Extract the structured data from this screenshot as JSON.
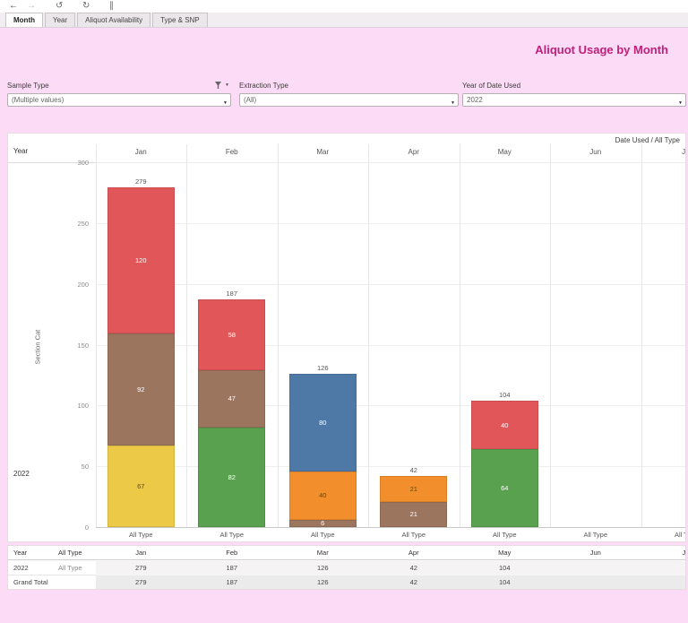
{
  "toolbar": {
    "icons": [
      {
        "name": "back-arrow-icon",
        "glyph": "←"
      },
      {
        "name": "forward-arrow-icon",
        "glyph": "→"
      },
      {
        "name": "revert-icon",
        "glyph": "↺"
      },
      {
        "name": "refresh-icon",
        "glyph": "↻"
      },
      {
        "name": "pause-icon",
        "glyph": "∥"
      }
    ]
  },
  "tabs": {
    "items": [
      {
        "label": "Month",
        "active": true
      },
      {
        "label": "Year",
        "active": false
      },
      {
        "label": "Aliquot Availability",
        "active": false
      },
      {
        "label": "Type & SNP",
        "active": false
      }
    ]
  },
  "header": {
    "title": "Aliquot Usage by Month",
    "title_color": "#c02079"
  },
  "filters": [
    {
      "label": "Sample Type",
      "value": "(Multiple values)",
      "has_menu_icons": true
    },
    {
      "label": "Extraction Type",
      "value": "(All)",
      "has_menu_icons": false
    },
    {
      "label": "Year of Date Used",
      "value": "2022",
      "has_menu_icons": false
    }
  ],
  "chart_data": {
    "type": "bar",
    "stacked": true,
    "title": "Aliquot Usage by Month",
    "corner_label": "Date Used / All Type",
    "row_axis_header": "Year",
    "row_label": "2022",
    "ylabel": "Section Cat",
    "column_footer_label": "All Type",
    "categories": [
      "Jan",
      "Feb",
      "Mar",
      "Apr",
      "May",
      "Jun",
      "Jul"
    ],
    "ylim": [
      0,
      300
    ],
    "yticks": [
      0,
      50,
      100,
      150,
      200,
      250,
      300
    ],
    "grid": true,
    "totals": [
      279,
      187,
      126,
      42,
      104,
      null,
      null
    ],
    "segments_order": "bottom-to-top",
    "stacks": [
      {
        "month": "Jan",
        "segments": [
          {
            "value": 67,
            "color": "#edc948",
            "label_dark": true
          },
          {
            "value": 92,
            "color": "#9c755f",
            "label_dark": false
          },
          {
            "value": 120,
            "color": "#e15759",
            "label_dark": false
          }
        ]
      },
      {
        "month": "Feb",
        "segments": [
          {
            "value": 82,
            "color": "#59a14f",
            "label_dark": false
          },
          {
            "value": 47,
            "color": "#9c755f",
            "label_dark": false
          },
          {
            "value": 58,
            "color": "#e15759",
            "label_dark": false
          }
        ]
      },
      {
        "month": "Mar",
        "segments": [
          {
            "value": 6,
            "color": "#9c755f",
            "label_dark": false
          },
          {
            "value": 40,
            "color": "#f28e2b",
            "label_dark": true
          },
          {
            "value": 80,
            "color": "#4e79a7",
            "label_dark": false
          }
        ]
      },
      {
        "month": "Apr",
        "segments": [
          {
            "value": 21,
            "color": "#9c755f",
            "label_dark": false
          },
          {
            "value": 21,
            "color": "#f28e2b",
            "label_dark": true
          }
        ]
      },
      {
        "month": "May",
        "segments": [
          {
            "value": 64,
            "color": "#59a14f",
            "label_dark": false
          },
          {
            "value": 40,
            "color": "#e15759",
            "label_dark": false
          }
        ]
      },
      {
        "month": "Jun",
        "segments": []
      },
      {
        "month": "Jul",
        "segments": []
      }
    ]
  },
  "summary_table": {
    "columns": [
      "Year",
      "All Type",
      "Jan",
      "Feb",
      "Mar",
      "Apr",
      "May",
      "Jun",
      "Jul"
    ],
    "rows": [
      {
        "year": "2022",
        "type": "All Type",
        "values": [
          "279",
          "187",
          "126",
          "42",
          "104",
          "",
          ""
        ]
      },
      {
        "year": "Grand Total",
        "type": "",
        "values": [
          "279",
          "187",
          "126",
          "42",
          "104",
          "",
          ""
        ]
      }
    ]
  }
}
